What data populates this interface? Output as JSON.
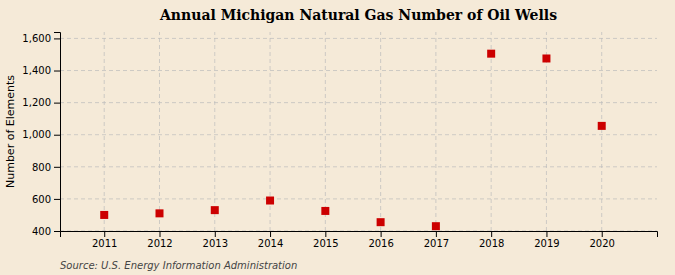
{
  "chart_data": {
    "type": "scatter",
    "title": "Annual Michigan Natural Gas Number of Oil Wells",
    "ylabel": "Number of Elements",
    "annotations": [
      "Source: U.S. Energy Information Administration"
    ],
    "x": [
      2011,
      2012,
      2013,
      2014,
      2015,
      2016,
      2017,
      2018,
      2019,
      2020
    ],
    "values": [
      500,
      510,
      530,
      590,
      525,
      455,
      430,
      1505,
      1475,
      1055
    ],
    "xlim": [
      2010.2,
      2021.0
    ],
    "xticks": [
      2011,
      2012,
      2013,
      2014,
      2015,
      2016,
      2017,
      2018,
      2019,
      2020
    ],
    "ylim": [
      400,
      1640
    ],
    "yticks": [
      400,
      600,
      800,
      {
        "value": 1000,
        "label": "1,000"
      },
      {
        "value": 1200,
        "label": "1,200"
      },
      {
        "value": 1400,
        "label": "1,400"
      },
      {
        "value": 1600,
        "label": "1,600"
      }
    ],
    "color": "#cc0000",
    "marker": "square",
    "grid": true
  }
}
